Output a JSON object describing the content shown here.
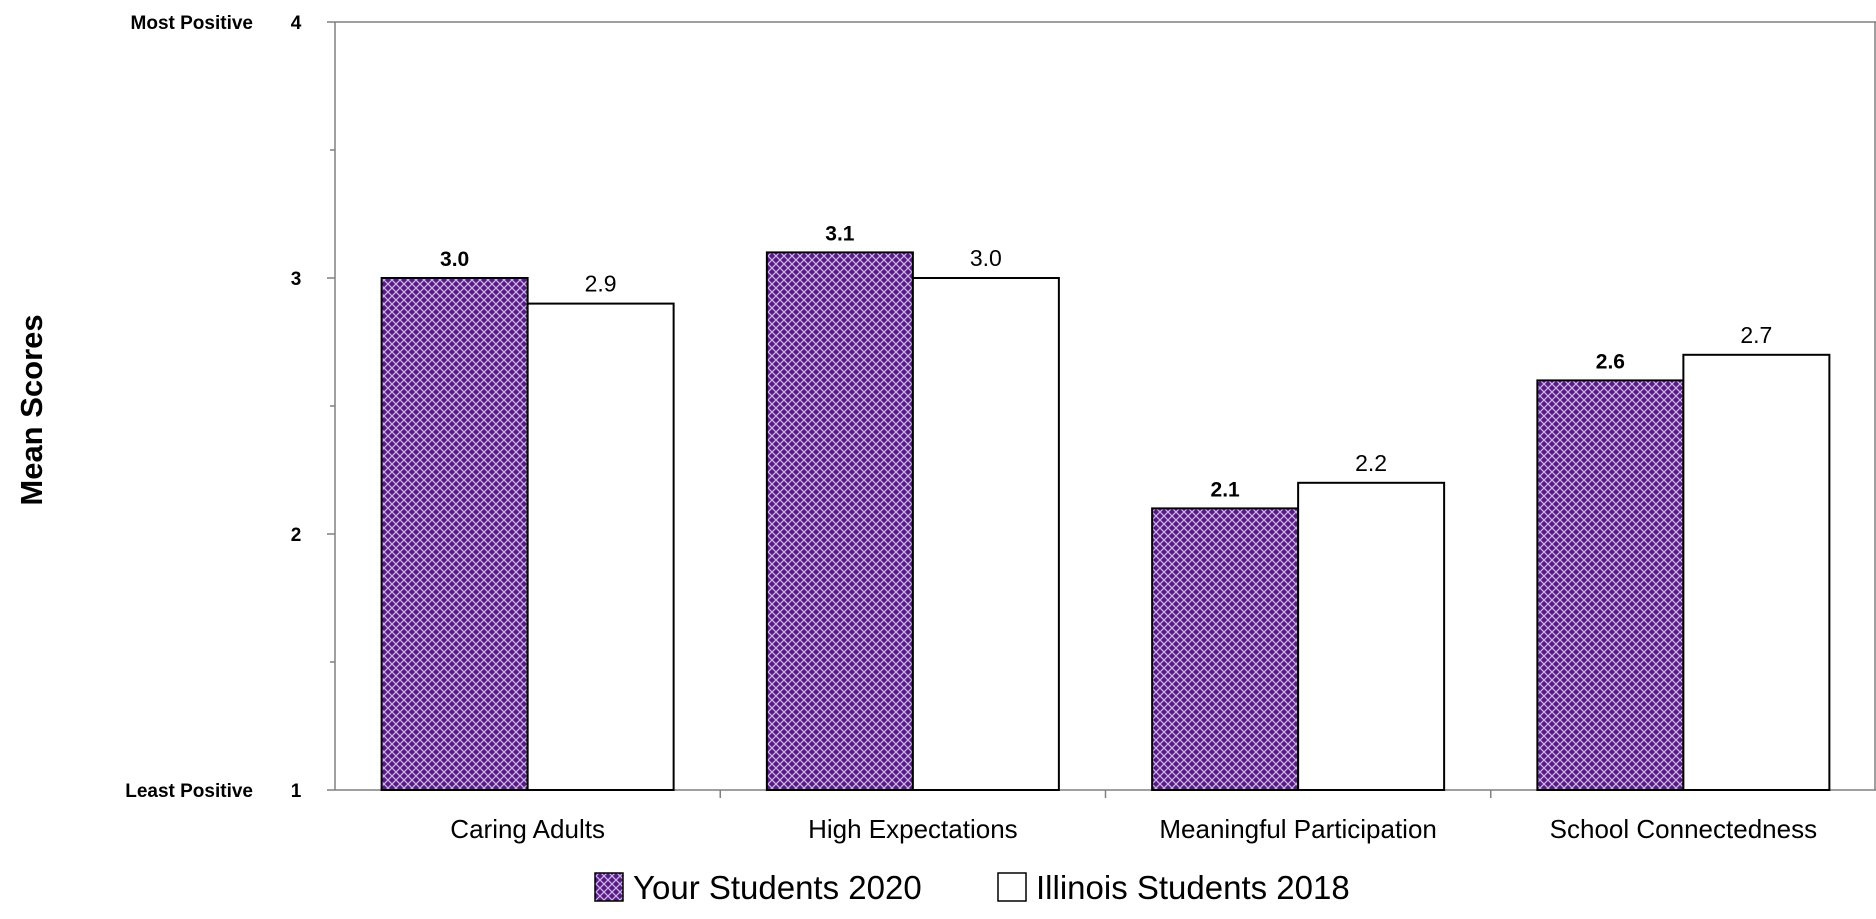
{
  "chart_data": {
    "type": "bar",
    "categories": [
      "Caring Adults",
      "High Expectations",
      "Meaningful Participation",
      "School Connectedness"
    ],
    "series": [
      {
        "name": "Your Students 2020",
        "values": [
          3.0,
          3.1,
          2.1,
          2.6
        ],
        "labels": [
          "3.0",
          "3.1",
          "2.1",
          "2.6"
        ],
        "style": "purple-crosshatch"
      },
      {
        "name": "Illinois Students 2018",
        "values": [
          2.9,
          3.0,
          2.2,
          2.7
        ],
        "labels": [
          "2.9",
          "3.0",
          "2.2",
          "2.7"
        ],
        "style": "white"
      }
    ],
    "ylabel": "Mean Scores",
    "ylim": [
      1,
      4
    ],
    "yticks": [
      {
        "value": 4,
        "label": "4",
        "word": "Most Positive"
      },
      {
        "value": 3,
        "label": "3",
        "word": ""
      },
      {
        "value": 2,
        "label": "2",
        "word": ""
      },
      {
        "value": 1,
        "label": "1",
        "word": "Least Positive"
      }
    ],
    "grid": false,
    "legend_position": "bottom",
    "colors": {
      "series1_fill": "#5a1a86",
      "series1_hatch": "#c9b3e6",
      "series2_fill": "#ffffff",
      "axis": "#808080"
    }
  }
}
